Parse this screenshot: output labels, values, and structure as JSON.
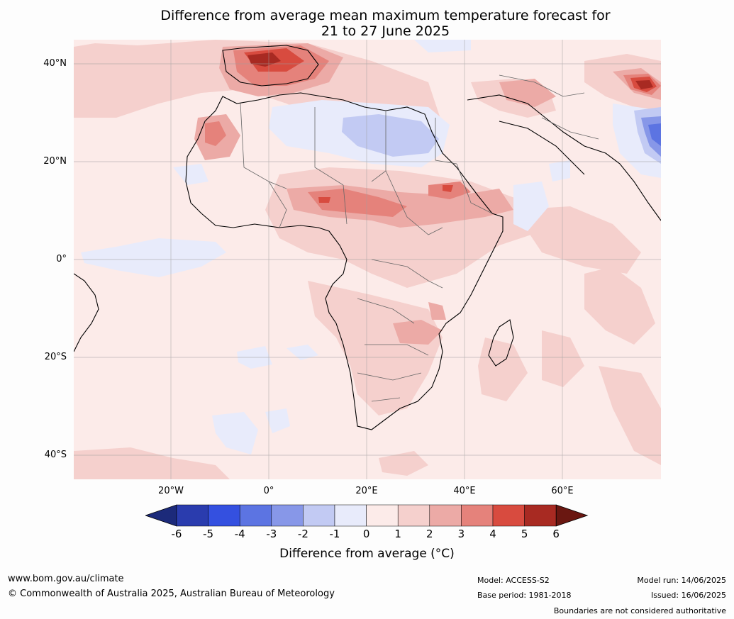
{
  "title_line1": "Difference from average mean maximum temperature forecast for",
  "title_line2": "21 to 27 June 2025",
  "lat_labels": [
    "40°N",
    "20°N",
    "0°",
    "20°S",
    "40°S"
  ],
  "lon_labels": [
    "20°W",
    "0°",
    "20°E",
    "40°E",
    "60°E"
  ],
  "colorbar": {
    "label": "Difference from average (°C)",
    "ticks": [
      "-6",
      "-5",
      "-4",
      "-3",
      "-2",
      "-1",
      "0",
      "1",
      "2",
      "3",
      "4",
      "5",
      "6"
    ],
    "colors": [
      "#1c2a7a",
      "#2a3cae",
      "#3450e0",
      "#5c74e2",
      "#8797e8",
      "#c2caf3",
      "#e8ebfb",
      "#fcebe9",
      "#f5d0cd",
      "#ecaaa6",
      "#e5827b",
      "#d84b3f",
      "#a82a22",
      "#6a1711"
    ]
  },
  "footer": {
    "website": "www.bom.gov.au/climate",
    "copyright": "© Commonwealth of Australia 2025, Australian Bureau of Meteorology",
    "model": "Model: ACCESS-S2",
    "base_period": "Base period: 1981-2018",
    "model_run": "Model run: 14/06/2025",
    "issued": "Issued: 16/06/2025",
    "disclaimer": "Boundaries are not considered authoritative"
  }
}
